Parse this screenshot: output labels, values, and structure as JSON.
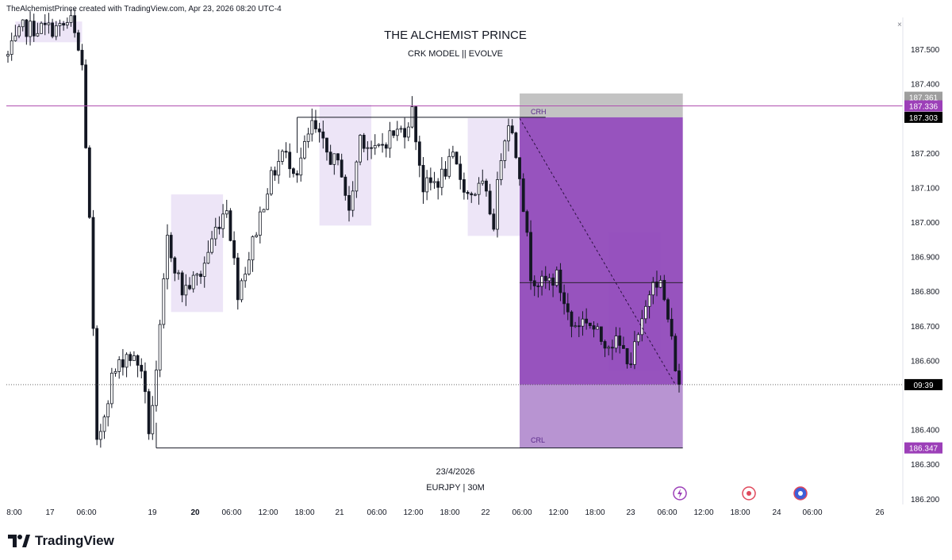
{
  "header": {
    "attribution": "TheAlchemistPrince created with TradingView.com, Apr 23, 2026 08:20 UTC-4"
  },
  "footer": {
    "brand": "TradingView"
  },
  "colors": {
    "candle": "#131722",
    "zone_fill": "#e8dff5",
    "short_fill": "#8e44b8",
    "target_fill": "#b48ed0",
    "stop_fill": "#bdbdbd",
    "purple_line": "#b050b0",
    "label_purple": "#9c3fb8",
    "label_black": "#000000",
    "label_gray": "#9e9e9e"
  },
  "chart_data": {
    "type": "candlestick",
    "title": "THE ALCHEMIST PRINCE",
    "subtitle": "CRK MODEL || EVOLVE",
    "symbol": "EURJPY | 30M",
    "date_note": "23/4/2026",
    "ylim": [
      186.2,
      187.55
    ],
    "y_ticks": [
      "187.500",
      "187.400",
      "187.200",
      "187.100",
      "187.000",
      "186.900",
      "186.800",
      "186.700",
      "186.600",
      "186.400",
      "186.300",
      "186.200"
    ],
    "price_labels": [
      {
        "text": "187.361",
        "price": 187.361,
        "color": "gray"
      },
      {
        "text": "187.336",
        "price": 187.336,
        "color": "purple"
      },
      {
        "text": "187.303",
        "price": 187.303,
        "color": "black"
      },
      {
        "text": "09:39",
        "price": 186.53,
        "color": "black"
      },
      {
        "text": "186.347",
        "price": 186.347,
        "color": "purple"
      }
    ],
    "time_ticks": [
      {
        "text": "8:00",
        "bold": false
      },
      {
        "text": "17",
        "bold": false
      },
      {
        "text": "06:00",
        "bold": false
      },
      {
        "text": "19",
        "bold": false
      },
      {
        "text": "20",
        "bold": true
      },
      {
        "text": "06:00",
        "bold": false
      },
      {
        "text": "12:00",
        "bold": false
      },
      {
        "text": "18:00",
        "bold": false
      },
      {
        "text": "21",
        "bold": false
      },
      {
        "text": "06:00",
        "bold": false
      },
      {
        "text": "12:00",
        "bold": false
      },
      {
        "text": "18:00",
        "bold": false
      },
      {
        "text": "22",
        "bold": false
      },
      {
        "text": "06:00",
        "bold": false
      },
      {
        "text": "12:00",
        "bold": false
      },
      {
        "text": "18:00",
        "bold": false
      },
      {
        "text": "23",
        "bold": false
      },
      {
        "text": "06:00",
        "bold": false
      },
      {
        "text": "12:00",
        "bold": false
      },
      {
        "text": "18:00",
        "bold": false
      },
      {
        "text": "24",
        "bold": false
      },
      {
        "text": "06:00",
        "bold": false
      },
      {
        "text": "26",
        "bold": false
      }
    ],
    "annotations": [
      {
        "text": "CRH",
        "price": 187.31
      },
      {
        "text": "CRL",
        "price": 186.36
      }
    ],
    "levels": {
      "crh": 187.303,
      "crl": 186.347,
      "horizontal_line": 187.336,
      "current": 186.53,
      "mid_line": 186.825
    },
    "anchors": [
      {
        "bar": 0,
        "price": 187.48
      },
      {
        "bar": 4,
        "price": 187.56
      },
      {
        "bar": 9,
        "price": 187.56
      },
      {
        "bar": 14,
        "price": 187.56
      },
      {
        "bar": 17,
        "price": 187.58
      },
      {
        "bar": 20,
        "price": 187.45
      },
      {
        "bar": 22,
        "price": 187.0
      },
      {
        "bar": 24,
        "price": 186.35
      },
      {
        "bar": 28,
        "price": 186.55
      },
      {
        "bar": 32,
        "price": 186.62
      },
      {
        "bar": 36,
        "price": 186.58
      },
      {
        "bar": 38,
        "price": 186.4
      },
      {
        "bar": 40,
        "price": 186.55
      },
      {
        "bar": 43,
        "price": 186.95
      },
      {
        "bar": 47,
        "price": 186.8
      },
      {
        "bar": 52,
        "price": 186.85
      },
      {
        "bar": 56,
        "price": 186.98
      },
      {
        "bar": 59,
        "price": 187.05
      },
      {
        "bar": 62,
        "price": 186.8
      },
      {
        "bar": 65,
        "price": 186.9
      },
      {
        "bar": 70,
        "price": 187.1
      },
      {
        "bar": 74,
        "price": 187.2
      },
      {
        "bar": 78,
        "price": 187.15
      },
      {
        "bar": 82,
        "price": 187.28
      },
      {
        "bar": 86,
        "price": 187.2
      },
      {
        "bar": 90,
        "price": 187.15
      },
      {
        "bar": 92,
        "price": 187.02
      },
      {
        "bar": 95,
        "price": 187.25
      },
      {
        "bar": 99,
        "price": 187.2
      },
      {
        "bar": 103,
        "price": 187.25
      },
      {
        "bar": 107,
        "price": 187.27
      },
      {
        "bar": 109,
        "price": 187.32
      },
      {
        "bar": 112,
        "price": 187.1
      },
      {
        "bar": 116,
        "price": 187.12
      },
      {
        "bar": 120,
        "price": 187.18
      },
      {
        "bar": 124,
        "price": 187.08
      },
      {
        "bar": 128,
        "price": 187.1
      },
      {
        "bar": 131,
        "price": 187.0
      },
      {
        "bar": 133,
        "price": 187.2
      },
      {
        "bar": 135,
        "price": 187.3
      },
      {
        "bar": 138,
        "price": 187.15
      },
      {
        "bar": 141,
        "price": 186.85
      },
      {
        "bar": 144,
        "price": 186.82
      },
      {
        "bar": 148,
        "price": 186.84
      },
      {
        "bar": 152,
        "price": 186.7
      },
      {
        "bar": 156,
        "price": 186.72
      },
      {
        "bar": 160,
        "price": 186.66
      },
      {
        "bar": 164,
        "price": 186.65
      },
      {
        "bar": 168,
        "price": 186.6
      },
      {
        "bar": 171,
        "price": 186.7
      },
      {
        "bar": 174,
        "price": 186.85
      },
      {
        "bar": 176,
        "price": 186.82
      },
      {
        "bar": 178,
        "price": 186.72
      },
      {
        "bar": 181,
        "price": 186.52
      }
    ]
  }
}
